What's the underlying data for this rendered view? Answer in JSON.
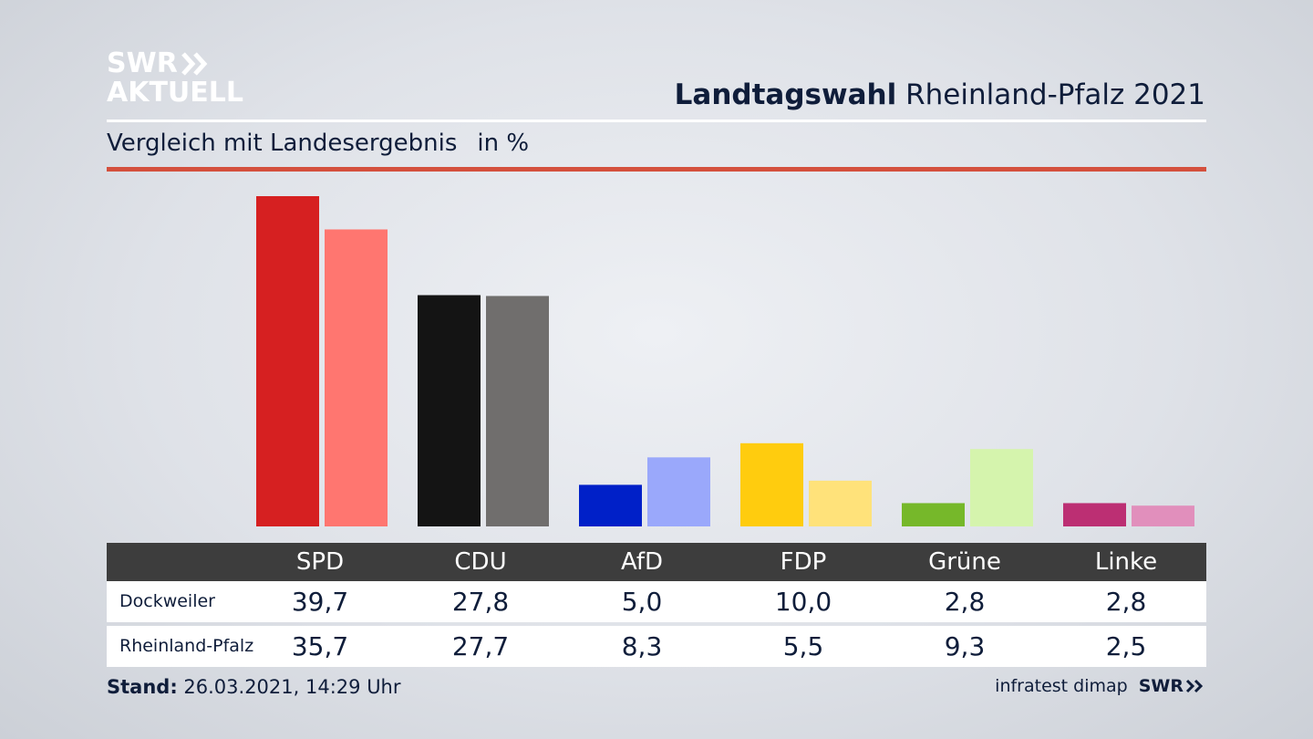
{
  "brand": {
    "logo_line1": "SWR",
    "logo_line2": "AKTUELL",
    "logo_color": "#ffffff",
    "footer_logo": "SWR",
    "chevron_icon": "double-chevron-icon"
  },
  "header": {
    "title_bold": "Landtagswahl",
    "title_rest": "Rheinland-Pfalz 2021",
    "subtitle": "Vergleich mit Landesergebnis",
    "unit": "in %",
    "accent_color": "#d4503d"
  },
  "chart_data": {
    "type": "bar",
    "categories": [
      "SPD",
      "CDU",
      "AfD",
      "FDP",
      "Grüne",
      "Linke"
    ],
    "series": [
      {
        "name": "Dockweiler",
        "values": [
          39.7,
          27.8,
          5.0,
          10.0,
          2.8,
          2.8
        ],
        "colors": [
          "#d62021",
          "#141414",
          "#0020c8",
          "#ffcc0e",
          "#76b82a",
          "#bc2f73"
        ]
      },
      {
        "name": "Rheinland-Pfalz",
        "values": [
          35.7,
          27.7,
          8.3,
          5.5,
          9.3,
          2.5
        ],
        "colors": [
          "#ff7670",
          "#706e6d",
          "#9aa8fb",
          "#ffe27a",
          "#d5f4ad",
          "#e18fbc"
        ]
      }
    ],
    "ylim": [
      0,
      40
    ],
    "grid": false,
    "legend": "table-below"
  },
  "table": {
    "headers": [
      "SPD",
      "CDU",
      "AfD",
      "FDP",
      "Grüne",
      "Linke"
    ],
    "rows": [
      {
        "label": "Dockweiler",
        "values": [
          "39,7",
          "27,8",
          "5,0",
          "10,0",
          "2,8",
          "2,8"
        ]
      },
      {
        "label": "Rheinland-Pfalz",
        "values": [
          "35,7",
          "27,7",
          "8,3",
          "5,5",
          "9,3",
          "2,5"
        ]
      }
    ]
  },
  "footer": {
    "stand_label": "Stand:",
    "stand_value": "26.03.2021, 14:29 Uhr",
    "source": "infratest dimap"
  }
}
